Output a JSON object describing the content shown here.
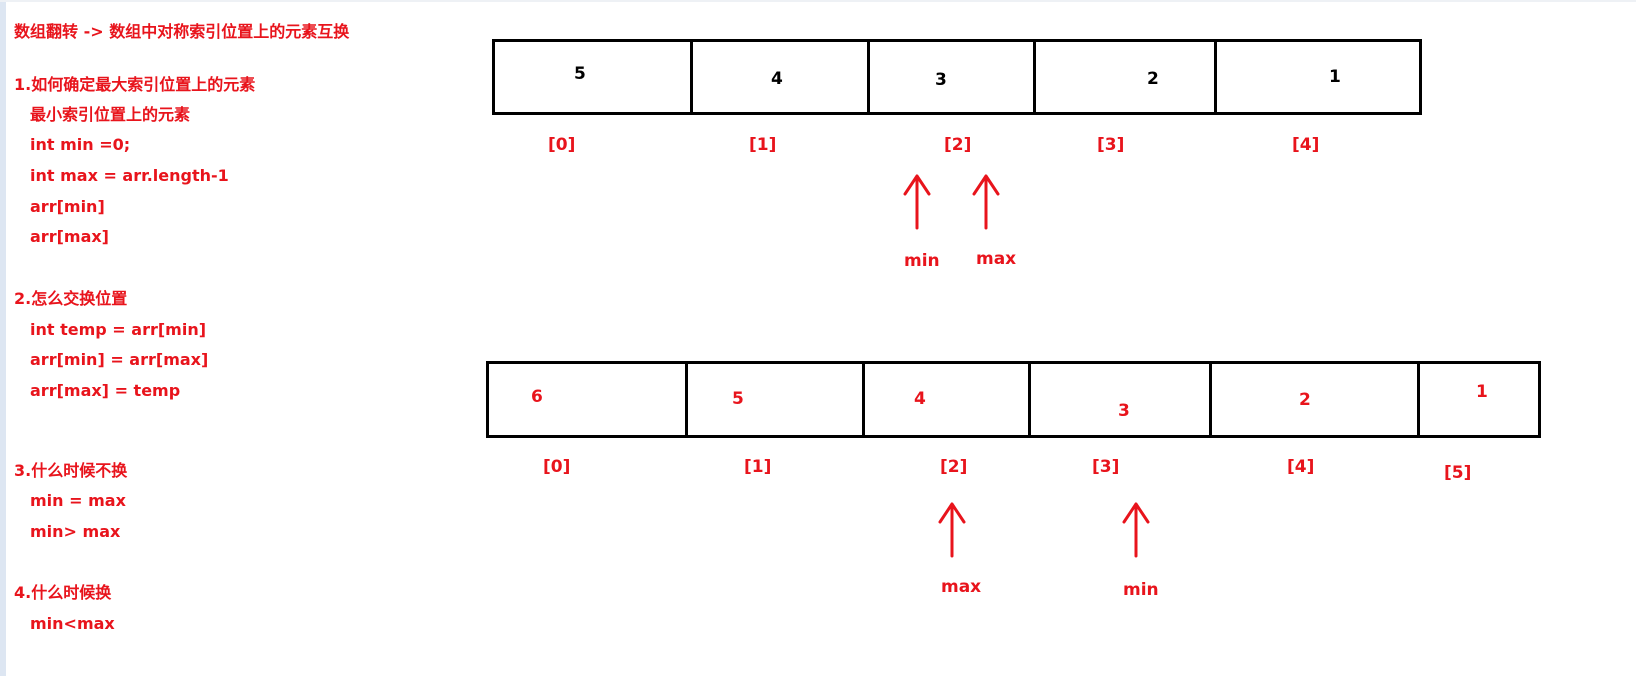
{
  "notes": {
    "title": "数组翻转 -> 数组中对称索引位置上的元素互换",
    "q1_title": "1.如何确定最大索引位置上的元素",
    "q1_lines": [
      "最小索引位置上的元素",
      "int min =0;",
      "int max = arr.length-1",
      "arr[min]",
      "arr[max]"
    ],
    "q2_title": "2.怎么交换位置",
    "q2_lines": [
      "int temp = arr[min]",
      "arr[min] = arr[max]",
      "arr[max] = temp"
    ],
    "q3_title": "3.什么时候不换",
    "q3_lines": [
      "min = max",
      "min> max"
    ],
    "q4_title": "4.什么时候换",
    "q4_lines": [
      "min<max"
    ]
  },
  "array1": {
    "values": [
      "5",
      "4",
      "3",
      "2",
      "1"
    ],
    "indices": [
      "[0]",
      "[1]",
      "[2]",
      "[3]",
      "[4]"
    ],
    "pointer_left": "min",
    "pointer_right": "max"
  },
  "array2": {
    "values": [
      "6",
      "5",
      "4",
      "3",
      "2",
      "1"
    ],
    "indices": [
      "[0]",
      "[1]",
      "[2]",
      "[3]",
      "[4]",
      "[5]"
    ],
    "pointer_left": "max",
    "pointer_right": "min"
  },
  "colors": {
    "annotation": "#e8141c",
    "border": "#000000"
  }
}
